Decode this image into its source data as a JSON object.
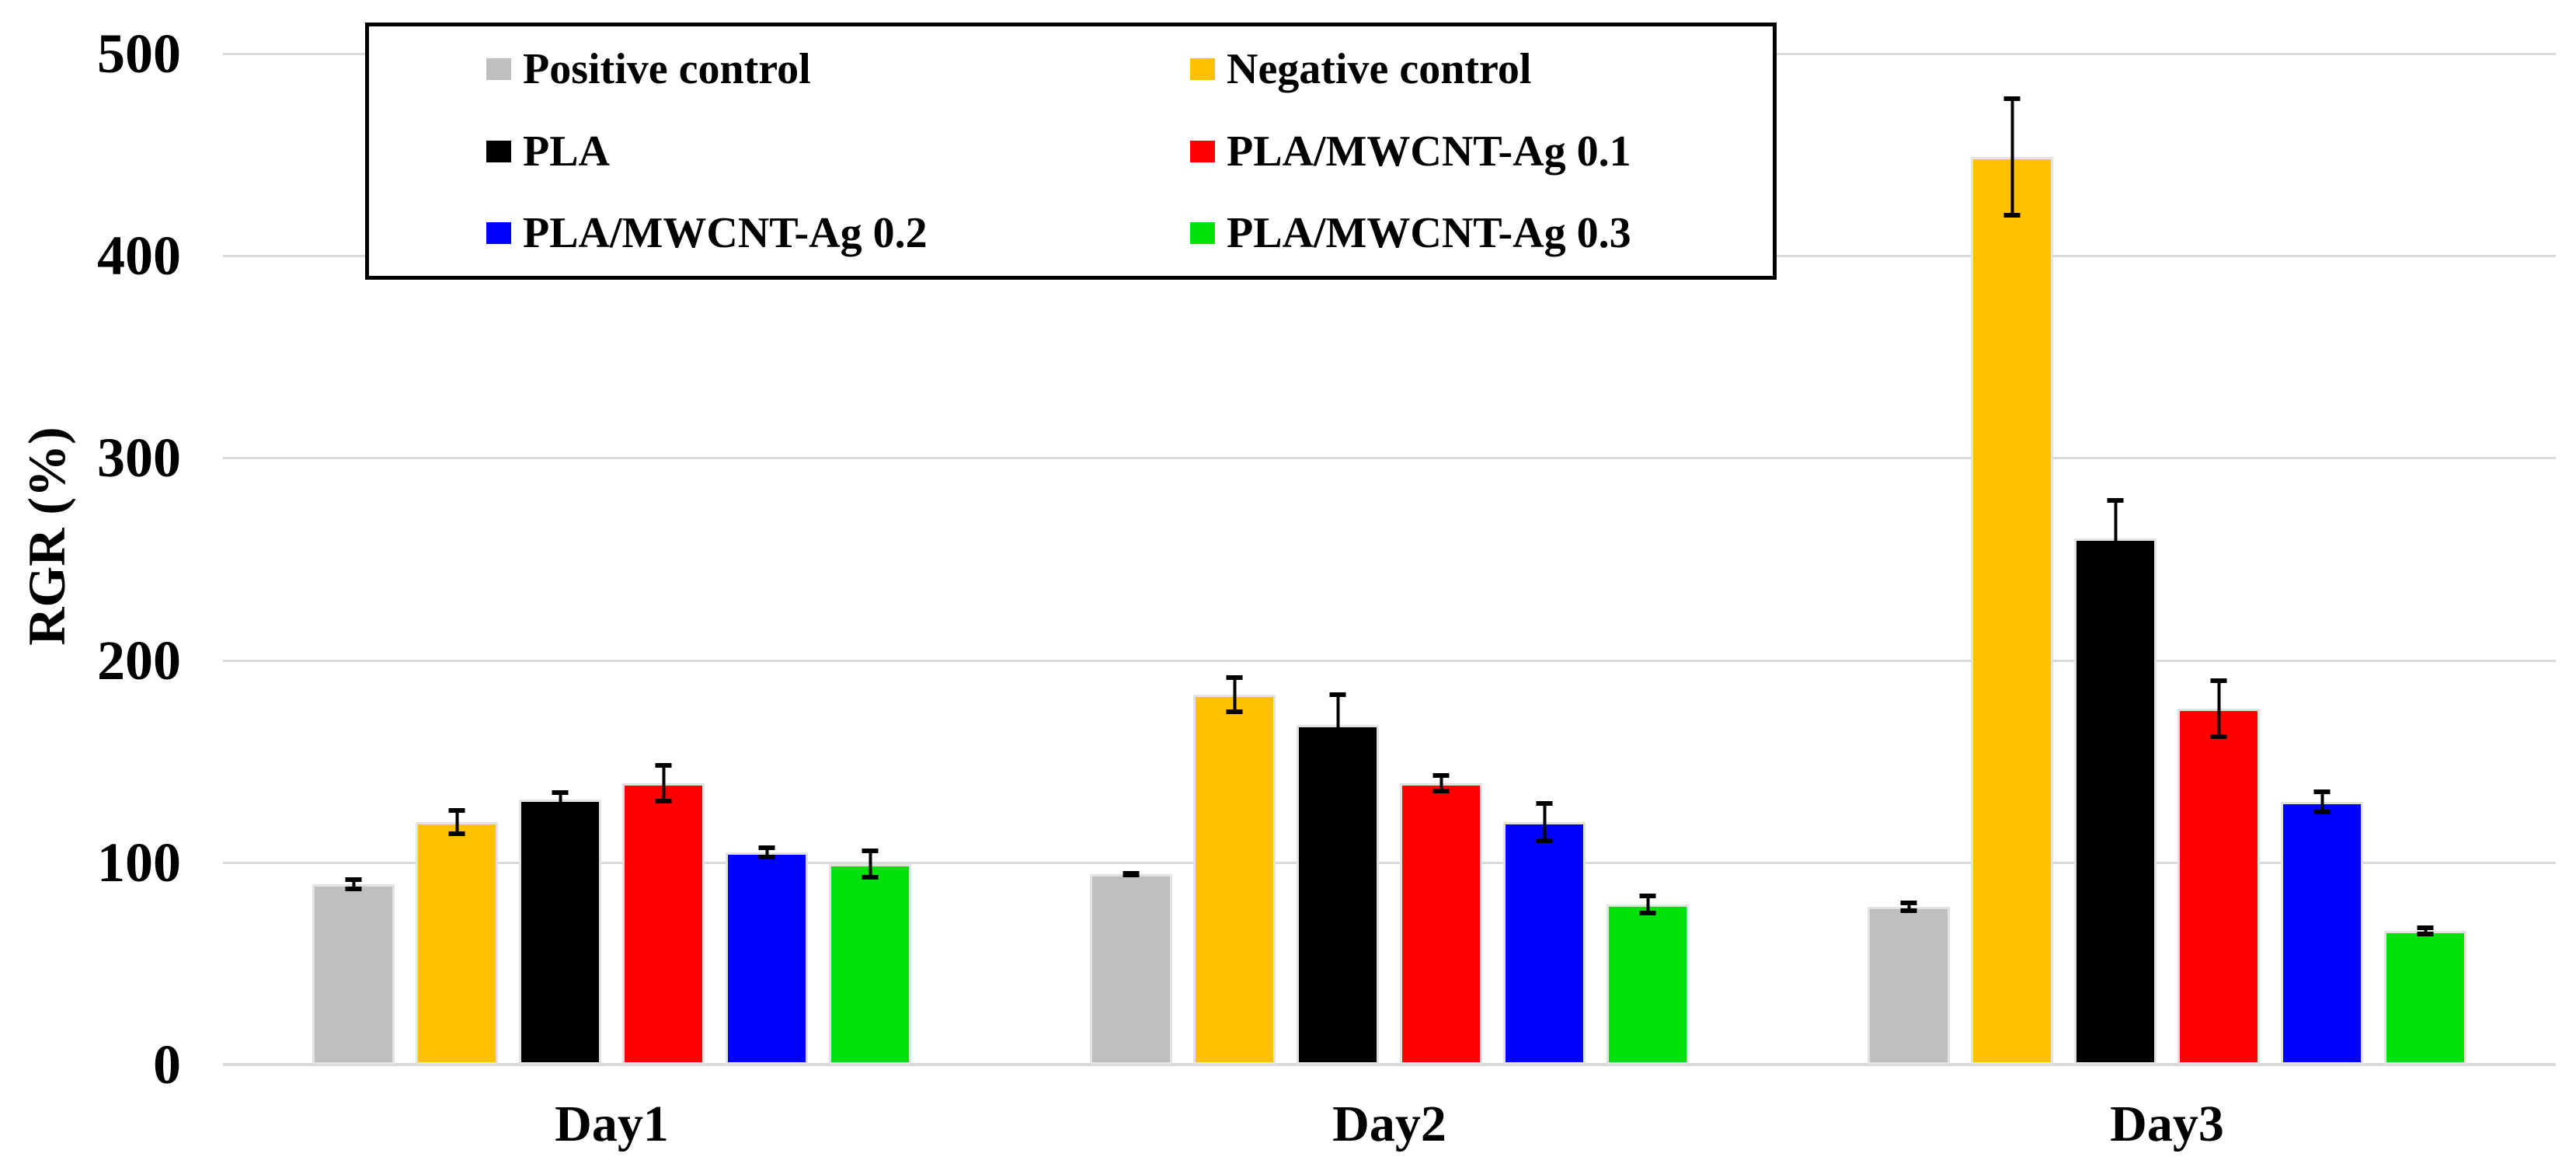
{
  "chart_data": {
    "type": "bar",
    "title": "",
    "ylabel": "RGR (%)",
    "xlabel": "",
    "ylim": [
      0,
      500
    ],
    "ytick_step": 100,
    "yticks": [
      0,
      100,
      200,
      300,
      400,
      500
    ],
    "grid": "horizontal",
    "legend_position": "top-left-box",
    "legend_columns": 2,
    "axis_color": "#D9D9D9",
    "text_color": "#000000",
    "categories": [
      "Day1",
      "Day2",
      "Day3"
    ],
    "series": [
      {
        "name": "Positive control",
        "color": "#BFBFBF",
        "values": [
          89,
          94,
          78
        ],
        "errors": [
          3.5,
          1.5,
          3
        ]
      },
      {
        "name": "Negative control",
        "color": "#FFC000",
        "values": [
          120,
          183,
          449
        ],
        "errors": [
          7,
          9.5,
          30
        ]
      },
      {
        "name": "PLA",
        "color": "#000000",
        "values": [
          131,
          168,
          260
        ],
        "errors": [
          4.5,
          16,
          20
        ]
      },
      {
        "name": "PLA/MWCNT-Ag 0.1",
        "color": "#FF0000",
        "values": [
          139,
          139,
          176
        ],
        "errors": [
          10,
          5,
          15
        ]
      },
      {
        "name": "PLA/MWCNT-Ag 0.2",
        "color": "#0000FF",
        "values": [
          105,
          120,
          130
        ],
        "errors": [
          3.5,
          10.5,
          6
        ]
      },
      {
        "name": "PLA/MWCNT-Ag 0.3",
        "color": "#00E10C",
        "values": [
          99,
          79,
          66
        ],
        "errors": [
          7.5,
          5.5,
          2.5
        ]
      }
    ]
  }
}
